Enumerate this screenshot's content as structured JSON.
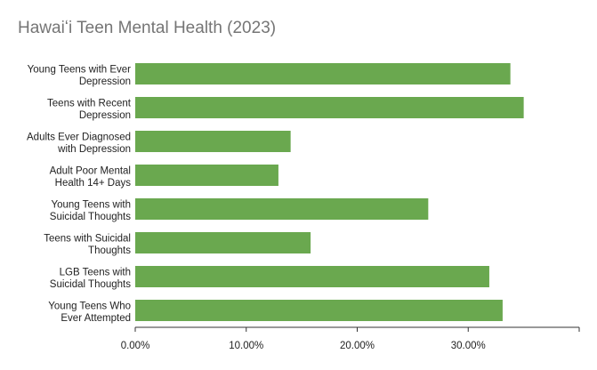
{
  "chart_data": {
    "type": "bar",
    "orientation": "horizontal",
    "title": "Hawaiʻi Teen Mental Health (2023)",
    "xlabel": "",
    "ylabel": "",
    "categories": [
      [
        "Young Teens with Ever",
        "Depression"
      ],
      [
        "Teens with Recent",
        "Depression"
      ],
      [
        "Adults Ever Diagnosed",
        "with Depression"
      ],
      [
        "Adult Poor Mental",
        "Health 14+ Days"
      ],
      [
        "Young Teens with",
        "Suicidal Thoughts"
      ],
      [
        "Teens with Suicidal",
        "Thoughts"
      ],
      [
        "LGB Teens with",
        "Suicidal Thoughts"
      ],
      [
        "Young Teens Who",
        "Ever Attempted"
      ]
    ],
    "values": [
      33.8,
      35.0,
      14.0,
      12.9,
      26.4,
      15.8,
      31.9,
      33.1
    ],
    "xlim": [
      0,
      40
    ],
    "x_ticks": [
      0,
      10,
      20,
      30,
      40
    ],
    "x_tick_labels": [
      "0.00%",
      "10.00%",
      "20.00%",
      "30.00%",
      ""
    ],
    "grid": false,
    "legend": "none",
    "bar_color": "#6aa84f",
    "axis_color": "#333333",
    "title_color": "#757575"
  }
}
